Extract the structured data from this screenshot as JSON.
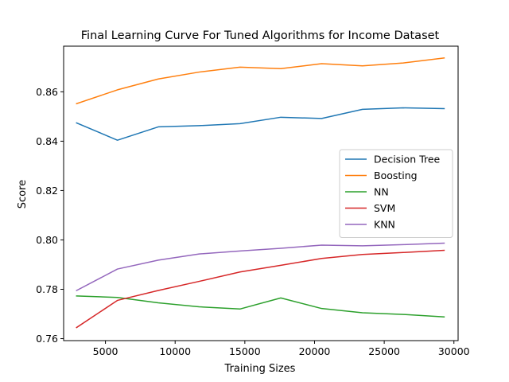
{
  "chart_data": {
    "type": "line",
    "title": "Final Learning Curve For Tuned Algorithms for Income Dataset",
    "xlabel": "Training Sizes",
    "ylabel": "Score",
    "xlim": [
      2000,
      30300
    ],
    "ylim": [
      0.7592,
      0.8785
    ],
    "xticks": [
      5000,
      10000,
      15000,
      20000,
      25000,
      30000
    ],
    "xtick_labels": [
      "5000",
      "10000",
      "15000",
      "20000",
      "25000",
      "30000"
    ],
    "yticks": [
      0.76,
      0.78,
      0.8,
      0.82,
      0.84,
      0.86
    ],
    "ytick_labels": [
      "0.76",
      "0.78",
      "0.80",
      "0.82",
      "0.84",
      "0.86"
    ],
    "grid": false,
    "legend_position": "center-right",
    "x": [
      2930,
      5860,
      8790,
      11720,
      14650,
      17580,
      20510,
      23440,
      26370,
      29300
    ],
    "series": [
      {
        "name": "Decision Tree",
        "color": "#1f77b4",
        "values": [
          0.8474,
          0.8404,
          0.8458,
          0.8463,
          0.8471,
          0.8497,
          0.8492,
          0.8529,
          0.8535,
          0.8532
        ]
      },
      {
        "name": "Boosting",
        "color": "#ff7f0e",
        "values": [
          0.8552,
          0.8608,
          0.8652,
          0.868,
          0.87,
          0.8694,
          0.8714,
          0.8705,
          0.8717,
          0.8737
        ]
      },
      {
        "name": "NN",
        "color": "#2ca02c",
        "values": [
          0.7773,
          0.7767,
          0.7745,
          0.7729,
          0.772,
          0.7765,
          0.7722,
          0.7705,
          0.7698,
          0.7688
        ]
      },
      {
        "name": "SVM",
        "color": "#d62728",
        "values": [
          0.7645,
          0.7755,
          0.7795,
          0.7832,
          0.787,
          0.7897,
          0.7925,
          0.7941,
          0.7949,
          0.7958
        ]
      },
      {
        "name": "KNN",
        "color": "#9467bd",
        "values": [
          0.7795,
          0.7882,
          0.7918,
          0.7943,
          0.7955,
          0.7966,
          0.7979,
          0.7976,
          0.7981,
          0.7987
        ]
      }
    ]
  }
}
